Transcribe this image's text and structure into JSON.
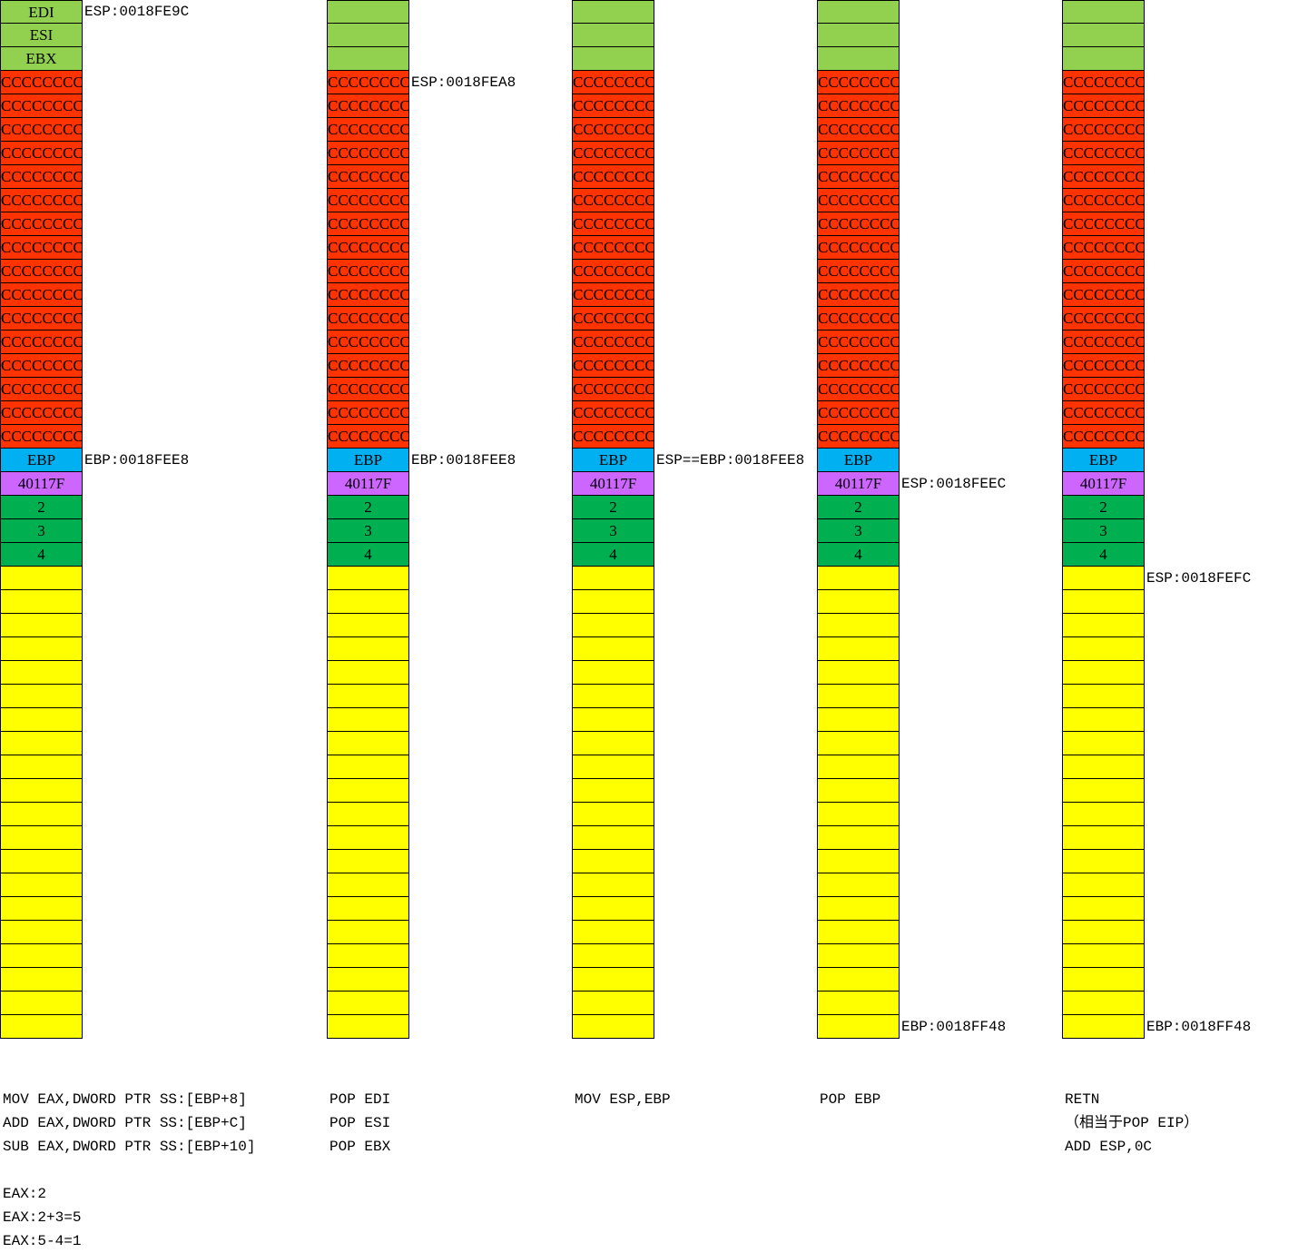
{
  "stack": {
    "saved_regs": [
      "EDI",
      "ESI",
      "EBX"
    ],
    "locals": [
      "CCCCCCCC",
      "CCCCCCCC",
      "CCCCCCCC",
      "CCCCCCCC",
      "CCCCCCCC",
      "CCCCCCCC",
      "CCCCCCCC",
      "CCCCCCCC",
      "CCCCCCCC",
      "CCCCCCCC",
      "CCCCCCCC",
      "CCCCCCCC",
      "CCCCCCCC",
      "CCCCCCCC",
      "CCCCCCCC",
      "CCCCCCCC"
    ],
    "ebp_cell": "EBP",
    "ret_cell": "40117F",
    "args": [
      "2",
      "3",
      "4"
    ],
    "empty_count": 20
  },
  "colors": {
    "saved": "#92D050",
    "local": "#FF3300",
    "ebp": "#00B0F0",
    "ret": "#CC66FF",
    "arg": "#00B050",
    "empty": "#FFFF00"
  },
  "columns": [
    {
      "show_saved_labels": true,
      "notes": [
        {
          "slot": 0,
          "text": "ESP:0018FE9C"
        },
        {
          "slot": 19,
          "text": "EBP:0018FEE8"
        }
      ],
      "code": [
        "MOV EAX,DWORD PTR SS:[EBP+8]",
        "ADD EAX,DWORD PTR SS:[EBP+C]",
        "SUB EAX,DWORD PTR SS:[EBP+10]"
      ],
      "results": [
        "EAX:2",
        "EAX:2+3=5",
        "EAX:5-4=1"
      ]
    },
    {
      "show_saved_labels": false,
      "notes": [
        {
          "slot": 3,
          "text": "ESP:0018FEA8"
        },
        {
          "slot": 19,
          "text": "EBP:0018FEE8"
        }
      ],
      "code": [
        "POP EDI",
        "POP ESI",
        "POP EBX"
      ],
      "results": []
    },
    {
      "show_saved_labels": false,
      "notes": [
        {
          "slot": 19,
          "text": "ESP==EBP:0018FEE8"
        }
      ],
      "code": [
        "MOV ESP,EBP"
      ],
      "results": []
    },
    {
      "show_saved_labels": false,
      "notes": [
        {
          "slot": 20,
          "text": "ESP:0018FEEC"
        },
        {
          "slot": 43,
          "text": "EBP:0018FF48"
        }
      ],
      "code": [
        "POP EBP"
      ],
      "results": []
    },
    {
      "show_saved_labels": false,
      "notes": [
        {
          "slot": 24,
          "text": "ESP:0018FEFC"
        },
        {
          "slot": 43,
          "text": "EBP:0018FF48"
        }
      ],
      "code": [
        "RETN",
        "（相当于POP EIP）",
        "ADD ESP,0C"
      ],
      "results": []
    }
  ]
}
